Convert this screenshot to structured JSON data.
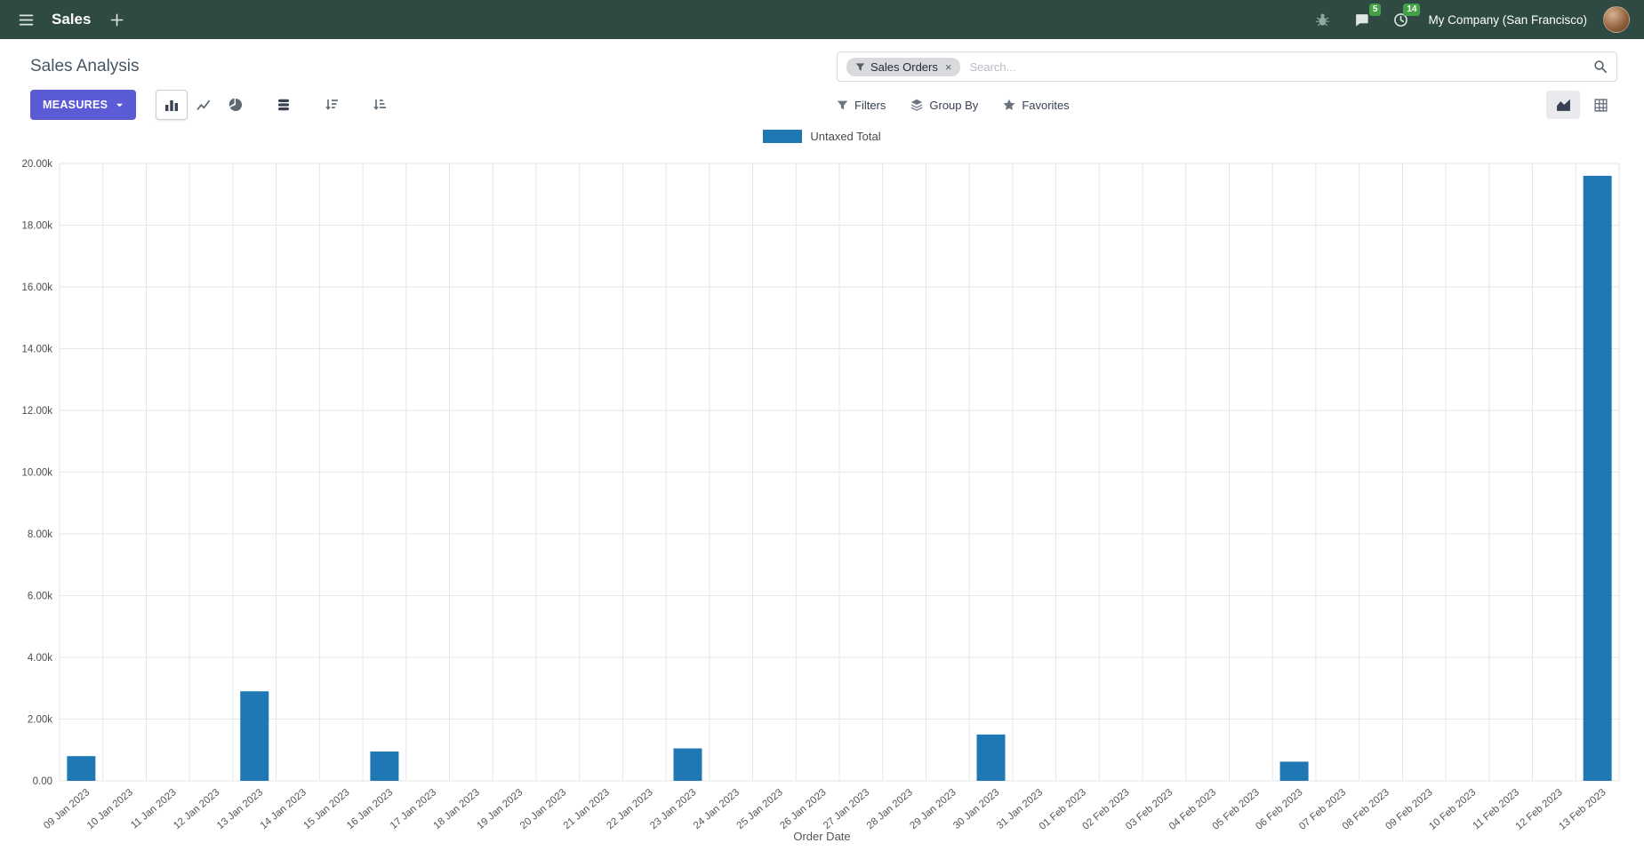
{
  "theme": {
    "header_bg": "#2f4a42",
    "primary": "#5b5bd6",
    "badge": "#43a047"
  },
  "header": {
    "app_name": "Sales",
    "company": "My Company (San Francisco)",
    "message_badge": "5",
    "activity_badge": "14"
  },
  "control_panel": {
    "title": "Sales Analysis",
    "search": {
      "facet": "Sales Orders",
      "remove": "×",
      "placeholder": "Search..."
    },
    "measures_label": "MEASURES",
    "filters_label": "Filters",
    "group_by_label": "Group By",
    "favorites_label": "Favorites"
  },
  "chart_data": {
    "type": "bar",
    "title": "",
    "xlabel": "Order Date",
    "ylabel": "",
    "grid": true,
    "legend_position": "top",
    "ylim": [
      0,
      20000
    ],
    "ytick_step": 2000,
    "ytick_labels": [
      "0.00",
      "2.00k",
      "4.00k",
      "6.00k",
      "8.00k",
      "10.00k",
      "12.00k",
      "14.00k",
      "16.00k",
      "18.00k",
      "20.00k"
    ],
    "categories": [
      "09 Jan 2023",
      "10 Jan 2023",
      "11 Jan 2023",
      "12 Jan 2023",
      "13 Jan 2023",
      "14 Jan 2023",
      "15 Jan 2023",
      "16 Jan 2023",
      "17 Jan 2023",
      "18 Jan 2023",
      "19 Jan 2023",
      "20 Jan 2023",
      "21 Jan 2023",
      "22 Jan 2023",
      "23 Jan 2023",
      "24 Jan 2023",
      "25 Jan 2023",
      "26 Jan 2023",
      "27 Jan 2023",
      "28 Jan 2023",
      "29 Jan 2023",
      "30 Jan 2023",
      "31 Jan 2023",
      "01 Feb 2023",
      "02 Feb 2023",
      "03 Feb 2023",
      "04 Feb 2023",
      "05 Feb 2023",
      "06 Feb 2023",
      "07 Feb 2023",
      "08 Feb 2023",
      "09 Feb 2023",
      "10 Feb 2023",
      "11 Feb 2023",
      "12 Feb 2023",
      "13 Feb 2023"
    ],
    "series": [
      {
        "name": "Untaxed Total",
        "color": "#1f77b4",
        "values": [
          800,
          0,
          0,
          0,
          2900,
          0,
          0,
          950,
          0,
          0,
          0,
          0,
          0,
          0,
          1050,
          0,
          0,
          0,
          0,
          0,
          0,
          1500,
          0,
          0,
          0,
          0,
          0,
          0,
          620,
          0,
          0,
          0,
          0,
          0,
          0,
          19600
        ]
      }
    ]
  }
}
